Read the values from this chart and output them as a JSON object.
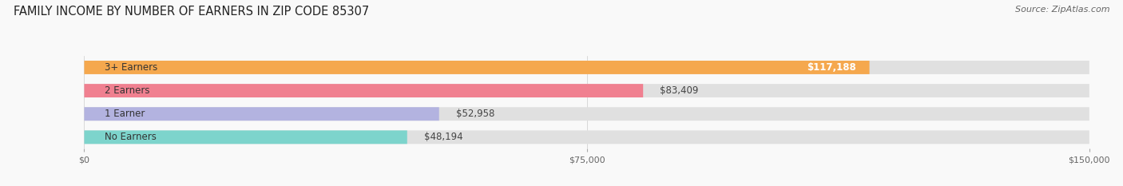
{
  "title": "FAMILY INCOME BY NUMBER OF EARNERS IN ZIP CODE 85307",
  "source": "Source: ZipAtlas.com",
  "categories": [
    "No Earners",
    "1 Earner",
    "2 Earners",
    "3+ Earners"
  ],
  "values": [
    48194,
    52958,
    83409,
    117188
  ],
  "labels": [
    "$48,194",
    "$52,958",
    "$83,409",
    "$117,188"
  ],
  "bar_colors": [
    "#7dd4cc",
    "#b3b3e0",
    "#f08090",
    "#f5a84e"
  ],
  "bar_bg_color": "#e0e0e0",
  "background_color": "#f9f9f9",
  "xmax": 150000,
  "xticks": [
    0,
    75000,
    150000
  ],
  "xticklabels": [
    "$0",
    "$75,000",
    "$150,000"
  ],
  "title_fontsize": 10.5,
  "source_fontsize": 8,
  "label_fontsize": 8.5,
  "cat_fontsize": 8.5
}
